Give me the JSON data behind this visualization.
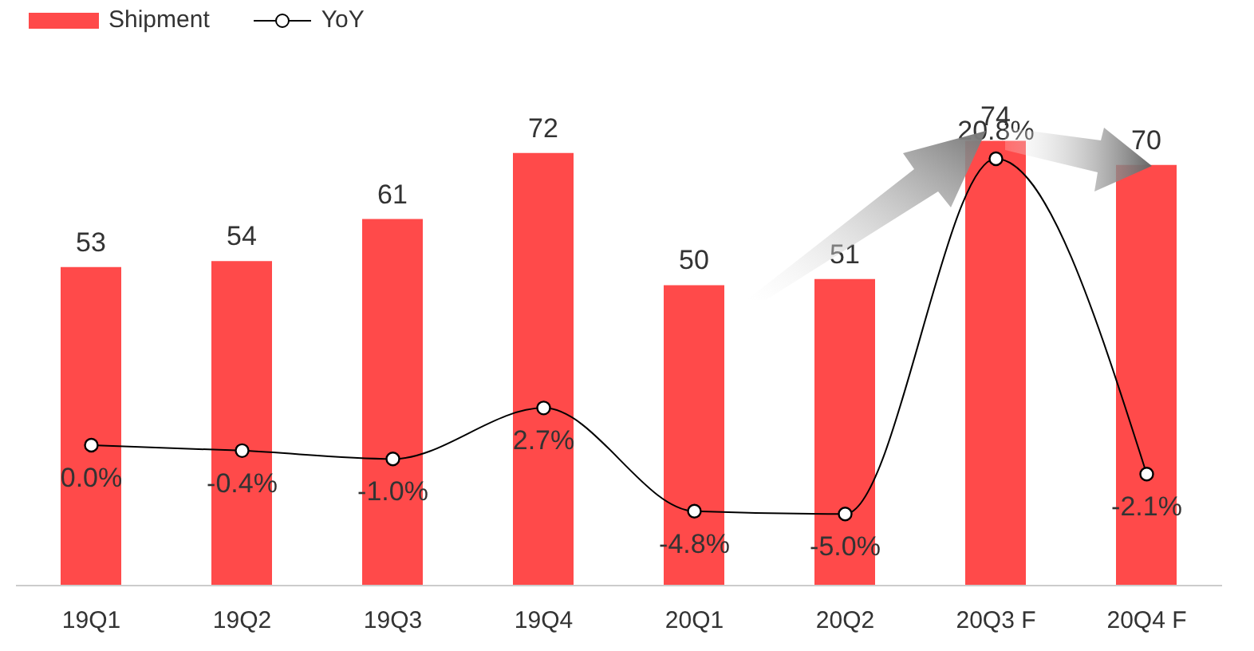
{
  "chart_data": {
    "type": "bar",
    "categories": [
      "19Q1",
      "19Q2",
      "19Q3",
      "19Q4",
      "20Q1",
      "20Q2",
      "20Q3 F",
      "20Q4 F"
    ],
    "series": [
      {
        "name": "Shipment",
        "color": "#ff4a4a",
        "values": [
          53,
          54,
          61,
          72,
          50,
          51,
          74,
          70
        ]
      },
      {
        "name": "YoY",
        "type": "line",
        "axis": "y2",
        "color": "#000000",
        "marker": "circle",
        "values": [
          0.0,
          -0.4,
          -1.0,
          2.7,
          -4.8,
          -5.0,
          20.8,
          -2.1
        ],
        "value_labels": [
          "0.0%",
          "-0.4%",
          "-1.0%",
          "2.7%",
          "-4.8%",
          "-5.0%",
          "20.8%",
          "-2.1%"
        ]
      }
    ],
    "tick_labels": "x",
    "data_labels": true,
    "legend": "top left"
  }
}
